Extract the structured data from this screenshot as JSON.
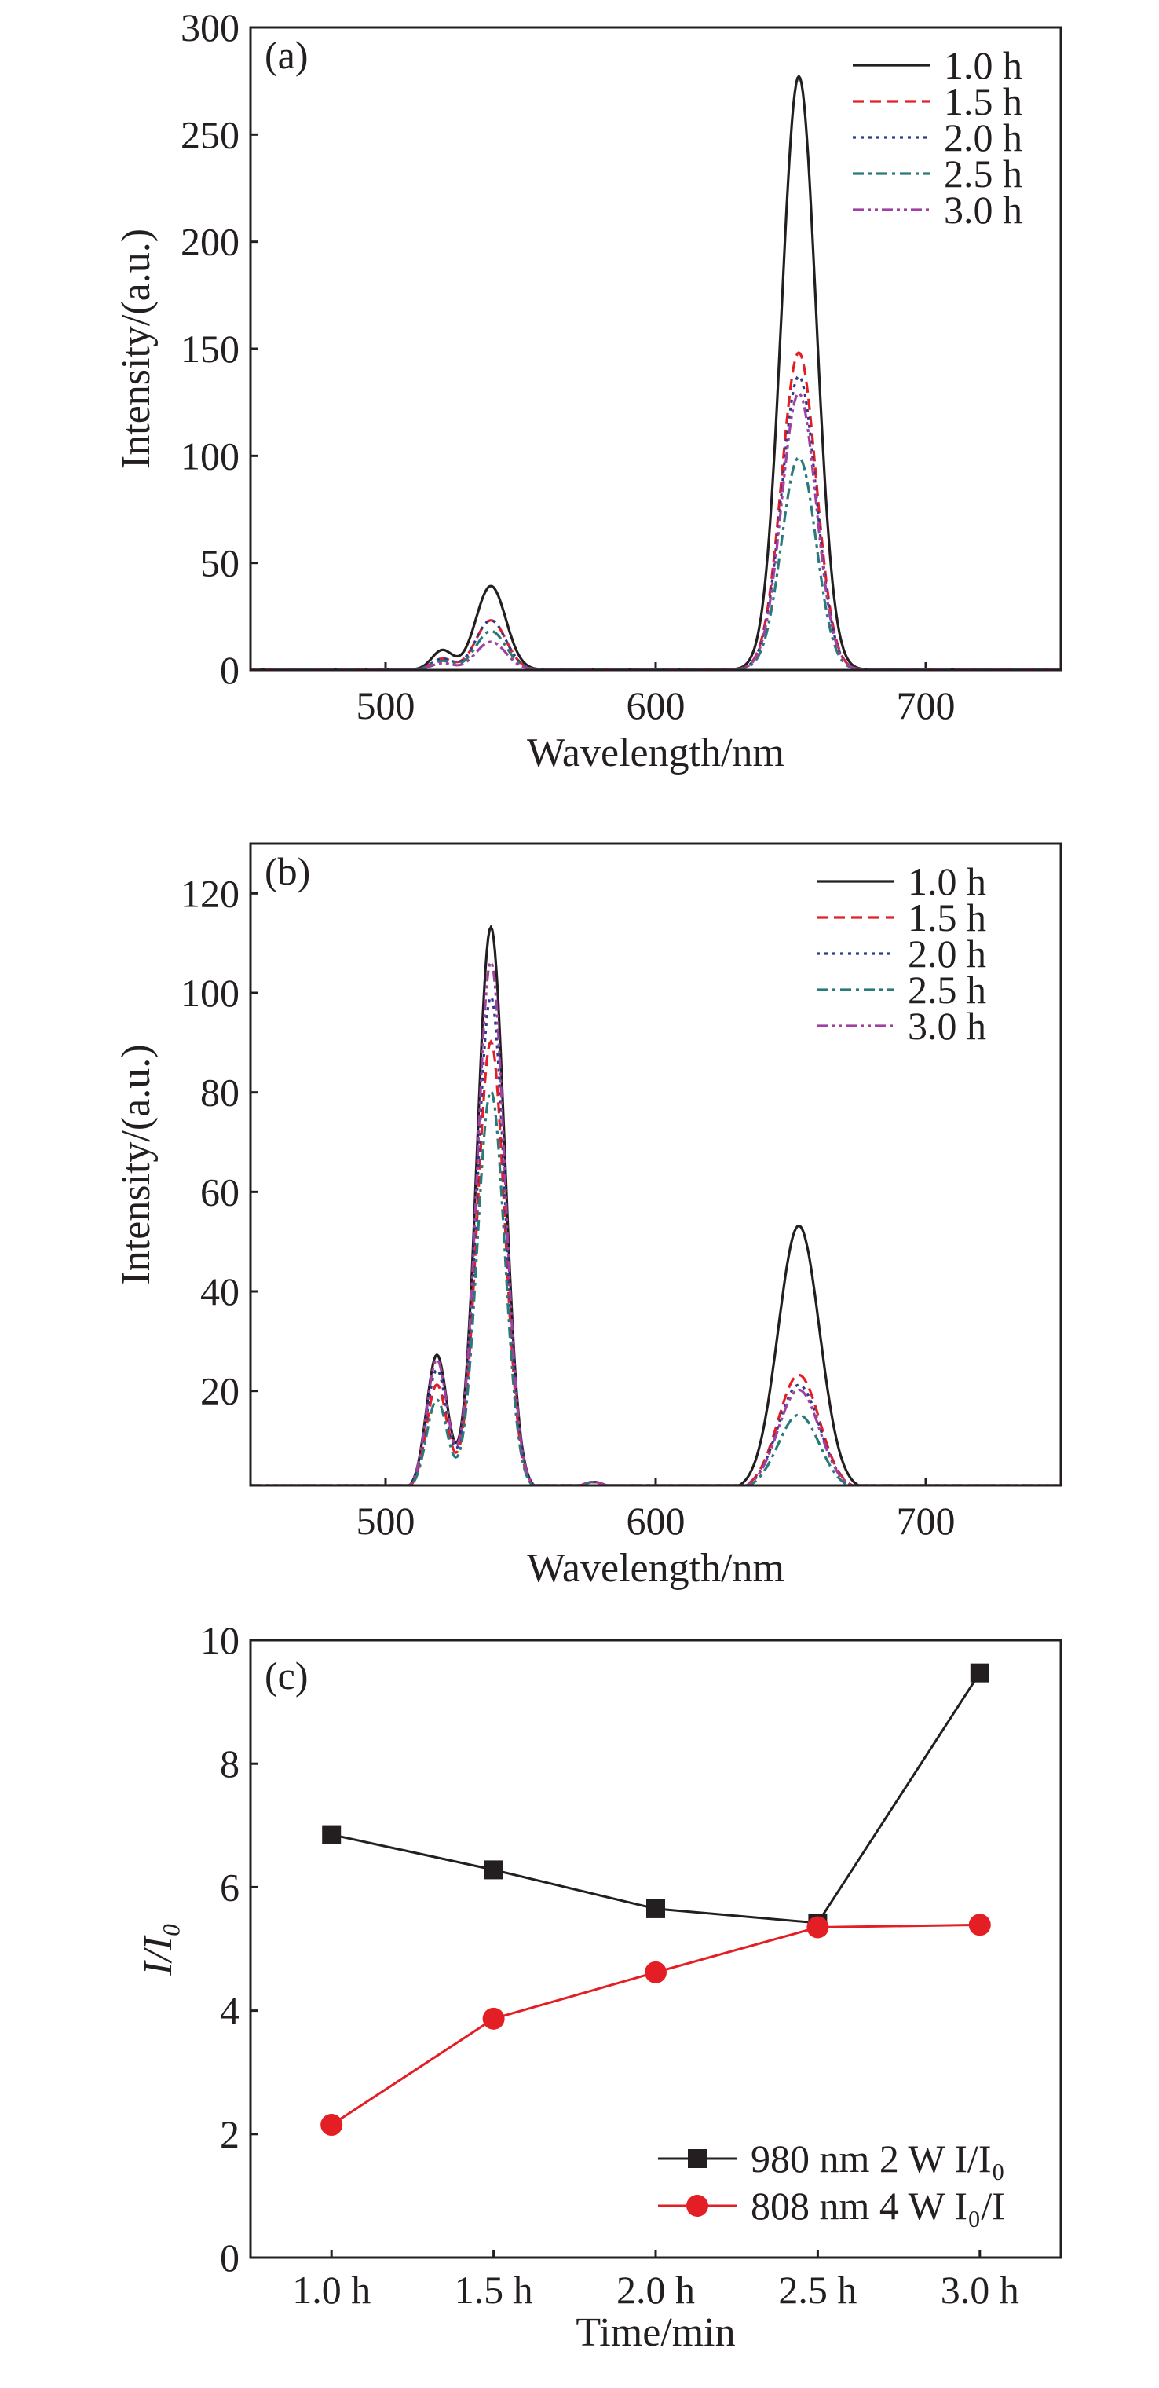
{
  "colors": {
    "1.0 h": "#231f20",
    "1.5 h": "#e31e24",
    "2.0 h": "#2e3a8c",
    "2.5 h": "#2a7a7a",
    "3.0 h": "#a040a0",
    "square_series": "#231f20",
    "circle_series": "#e31e24"
  },
  "chart_data": [
    {
      "type": "line",
      "panel_label": "(a)",
      "xlabel": "Wavelength/nm",
      "ylabel": "Intensity/(a.u.)",
      "xlim": [
        450,
        750
      ],
      "ylim": [
        0,
        300
      ],
      "xticks": [
        500,
        600,
        700
      ],
      "yticks": [
        0,
        50,
        100,
        150,
        200,
        250,
        300
      ],
      "legend_position": "top-right",
      "curve_model": "sum of gaussian peaks (center nm, height a.u., fwhm nm)",
      "series": [
        {
          "name": "1.0 h",
          "dash": "solid",
          "peaks": [
            [
              521,
              9,
              9
            ],
            [
              539,
              39,
              13
            ],
            [
              653,
              277,
              15
            ]
          ]
        },
        {
          "name": "1.5 h",
          "dash": "dash",
          "peaks": [
            [
              521,
              5,
              9
            ],
            [
              539,
              23,
              13
            ],
            [
              653,
              148,
              15
            ]
          ]
        },
        {
          "name": "2.0 h",
          "dash": "dot",
          "peaks": [
            [
              521,
              5,
              9
            ],
            [
              539,
              23,
              13
            ],
            [
              653,
              137,
              15
            ]
          ]
        },
        {
          "name": "2.5 h",
          "dash": "dashdot",
          "peaks": [
            [
              521,
              4,
              9
            ],
            [
              539,
              18,
              13
            ],
            [
              653,
              99,
              15
            ]
          ]
        },
        {
          "name": "3.0 h",
          "dash": "dashdotdot",
          "peaks": [
            [
              521,
              3,
              9
            ],
            [
              539,
              13,
              13
            ],
            [
              653,
              129,
              15
            ]
          ]
        }
      ]
    },
    {
      "type": "line",
      "panel_label": "(b)",
      "xlabel": "Wavelength/nm",
      "ylabel": "Intensity/(a.u.)",
      "xlim": [
        450,
        750
      ],
      "ylim": [
        1,
        130
      ],
      "xticks": [
        500,
        600,
        700
      ],
      "yticks": [
        20,
        40,
        60,
        80,
        100,
        120
      ],
      "legend_position": "top-right",
      "curve_model": "sum of gaussian peaks (center nm, height a.u., fwhm nm)",
      "series": [
        {
          "name": "1.0 h",
          "dash": "solid",
          "peaks": [
            [
              519,
              27,
              9
            ],
            [
              539,
              113,
              12
            ],
            [
              577,
              1.5,
              10
            ],
            [
              653,
              53,
              18
            ]
          ]
        },
        {
          "name": "1.5 h",
          "dash": "dash",
          "peaks": [
            [
              519,
              21,
              9
            ],
            [
              539,
              90,
              12
            ],
            [
              577,
              1.5,
              10
            ],
            [
              653,
              23,
              18
            ]
          ]
        },
        {
          "name": "2.0 h",
          "dash": "dot",
          "peaks": [
            [
              519,
              24,
              9
            ],
            [
              539,
              99,
              12
            ],
            [
              577,
              1.5,
              10
            ],
            [
              653,
              21,
              18
            ]
          ]
        },
        {
          "name": "2.5 h",
          "dash": "dashdot",
          "peaks": [
            [
              519,
              18,
              9
            ],
            [
              539,
              80,
              12
            ],
            [
              577,
              1.5,
              10
            ],
            [
              653,
              15,
              18
            ]
          ]
        },
        {
          "name": "3.0 h",
          "dash": "dashdotdot",
          "peaks": [
            [
              519,
              26,
              9
            ],
            [
              539,
              106,
              12
            ],
            [
              577,
              1.5,
              10
            ],
            [
              653,
              20,
              18
            ]
          ]
        }
      ]
    },
    {
      "type": "line",
      "panel_label": "(c)",
      "xlabel": "Time/min",
      "ylabel": "I/I₀",
      "categories": [
        "1.0 h",
        "1.5 h",
        "2.0 h",
        "2.5 h",
        "3.0 h"
      ],
      "ylim": [
        0,
        10
      ],
      "yticks": [
        0,
        2,
        4,
        6,
        8,
        10
      ],
      "legend_position": "bottom-right",
      "series": [
        {
          "name": "980 nm 2 W I/I₀",
          "marker": "square",
          "values": [
            6.85,
            6.28,
            5.65,
            5.42,
            9.47
          ]
        },
        {
          "name": "808 nm 4 W I₀/I",
          "marker": "circle",
          "values": [
            2.15,
            3.87,
            4.62,
            5.35,
            5.39
          ]
        }
      ]
    }
  ]
}
